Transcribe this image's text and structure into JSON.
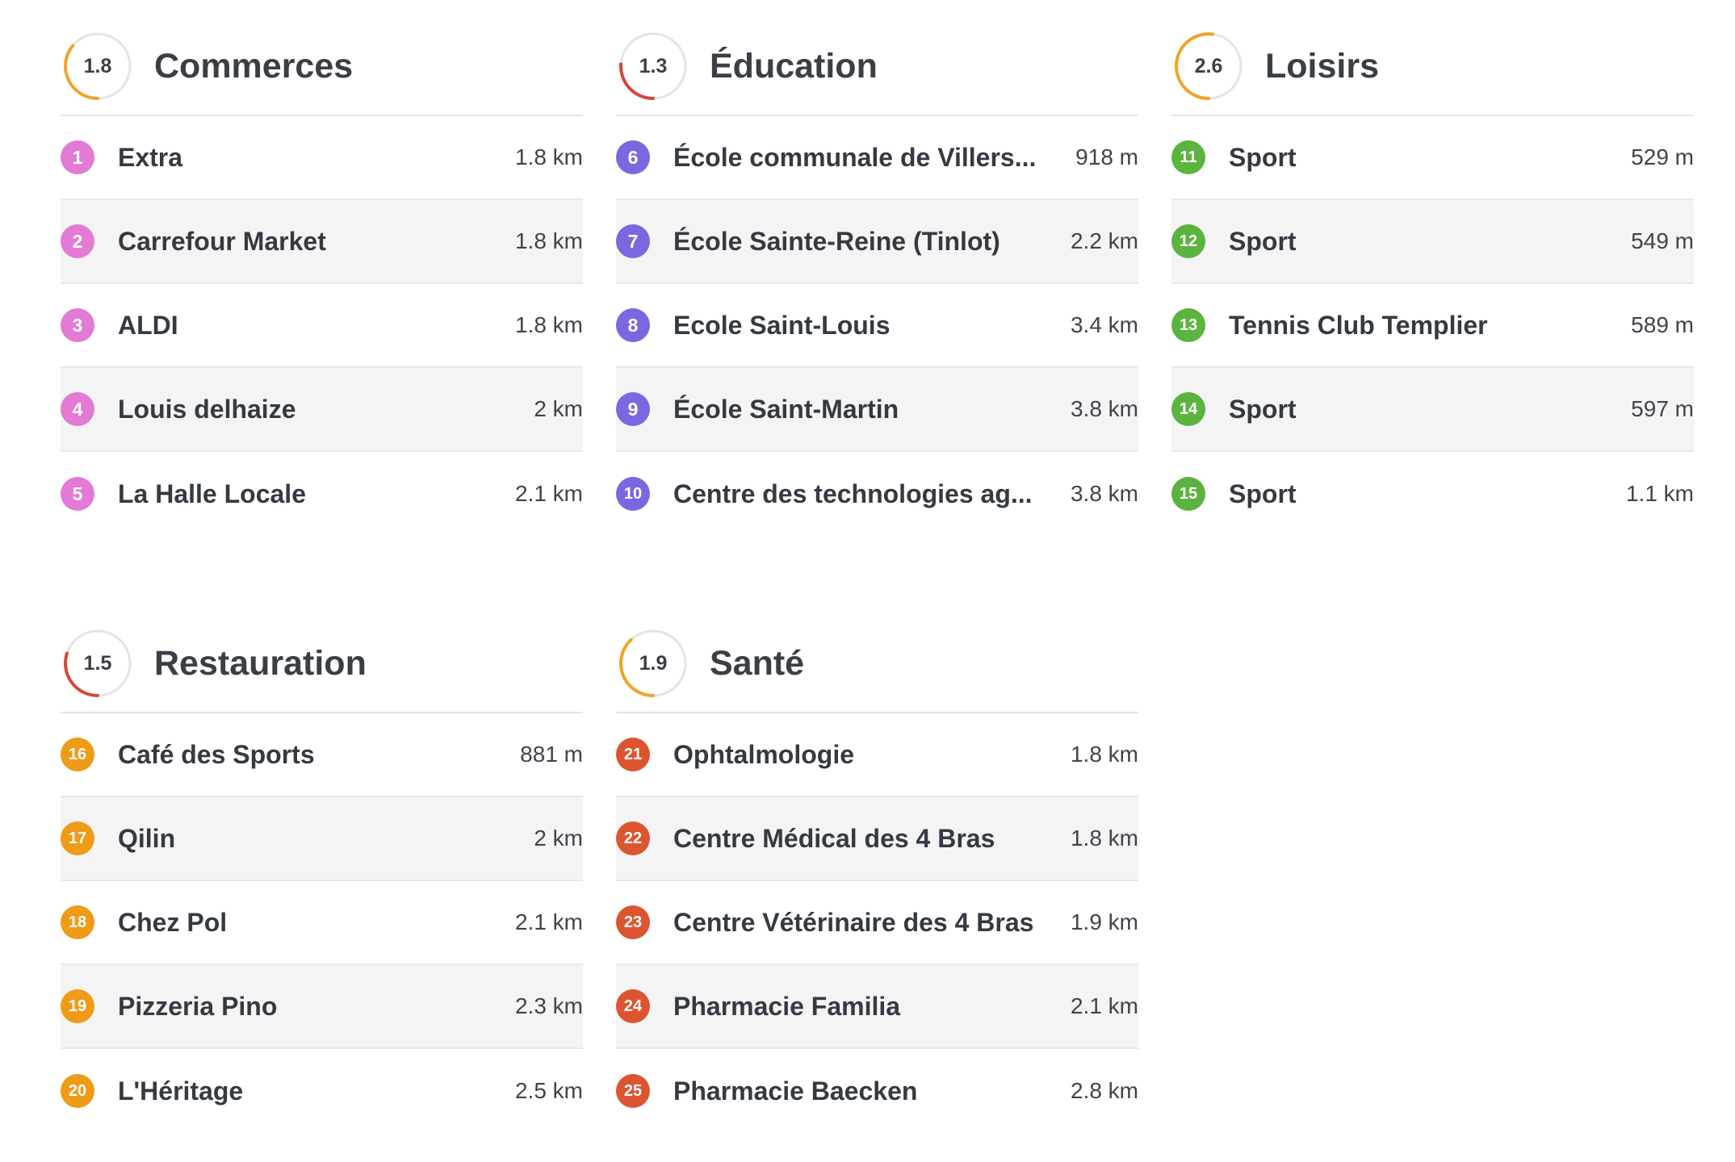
{
  "colors": {
    "commerces": "#e37ad4",
    "education": "#7b68e0",
    "loisirs": "#5ab43e",
    "restauration": "#ee9b17",
    "sante": "#dd5530",
    "ring_track": "#e2e4e7",
    "ring_warm": "#f0a32a",
    "ring_red": "#d8453a"
  },
  "sections": {
    "commerces": {
      "score": "1.8",
      "title": "Commerces",
      "items": [
        {
          "num": "1",
          "name": "Extra",
          "dist": "1.8 km"
        },
        {
          "num": "2",
          "name": "Carrefour Market",
          "dist": "1.8 km"
        },
        {
          "num": "3",
          "name": "ALDI",
          "dist": "1.8 km"
        },
        {
          "num": "4",
          "name": "Louis delhaize",
          "dist": "2 km"
        },
        {
          "num": "5",
          "name": "La Halle Locale",
          "dist": "2.1 km"
        }
      ]
    },
    "education": {
      "score": "1.3",
      "title": "Éducation",
      "items": [
        {
          "num": "6",
          "name": "École communale de Villers...",
          "dist": "918 m"
        },
        {
          "num": "7",
          "name": "École Sainte-Reine (Tinlot)",
          "dist": "2.2 km"
        },
        {
          "num": "8",
          "name": "Ecole Saint-Louis",
          "dist": "3.4 km"
        },
        {
          "num": "9",
          "name": "École Saint-Martin",
          "dist": "3.8 km"
        },
        {
          "num": "10",
          "name": "Centre des technologies ag...",
          "dist": "3.8 km"
        }
      ]
    },
    "loisirs": {
      "score": "2.6",
      "title": "Loisirs",
      "items": [
        {
          "num": "11",
          "name": "Sport",
          "dist": "529 m"
        },
        {
          "num": "12",
          "name": "Sport",
          "dist": "549 m"
        },
        {
          "num": "13",
          "name": "Tennis Club Templier",
          "dist": "589 m"
        },
        {
          "num": "14",
          "name": "Sport",
          "dist": "597 m"
        },
        {
          "num": "15",
          "name": "Sport",
          "dist": "1.1 km"
        }
      ]
    },
    "restauration": {
      "score": "1.5",
      "title": "Restauration",
      "items": [
        {
          "num": "16",
          "name": "Café des Sports",
          "dist": "881 m"
        },
        {
          "num": "17",
          "name": "Qilin",
          "dist": "2 km"
        },
        {
          "num": "18",
          "name": "Chez Pol",
          "dist": "2.1 km"
        },
        {
          "num": "19",
          "name": "Pizzeria Pino",
          "dist": "2.3 km"
        },
        {
          "num": "20",
          "name": "L'Héritage",
          "dist": "2.5 km"
        }
      ]
    },
    "sante": {
      "score": "1.9",
      "title": "Santé",
      "items": [
        {
          "num": "21",
          "name": "Ophtalmologie",
          "dist": "1.8 km"
        },
        {
          "num": "22",
          "name": "Centre Médical des 4 Bras",
          "dist": "1.8 km"
        },
        {
          "num": "23",
          "name": "Centre Vétérinaire des 4 Bras",
          "dist": "1.9 km"
        },
        {
          "num": "24",
          "name": "Pharmacie Familia",
          "dist": "2.1 km"
        },
        {
          "num": "25",
          "name": "Pharmacie Baecken",
          "dist": "2.8 km"
        }
      ]
    }
  }
}
